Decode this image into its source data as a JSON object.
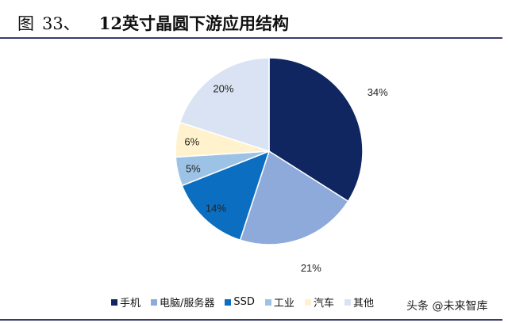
{
  "figure": {
    "label": "图",
    "number": "33、",
    "title": "12英寸晶圆下游应用结构"
  },
  "chart_data": {
    "type": "pie",
    "title": "12英寸晶圆下游应用结构",
    "start": "12 o'clock",
    "direction": "clockwise",
    "legend_position": "bottom",
    "slices": [
      {
        "name": "手机",
        "value": 34,
        "label": "34%",
        "color": "#0f2660"
      },
      {
        "name": "电脑/服务器",
        "value": 21,
        "label": "21%",
        "color": "#8eaadb"
      },
      {
        "name": "SSD",
        "value": 14,
        "label": "14%",
        "color": "#0b6ec0"
      },
      {
        "name": "工业",
        "value": 5,
        "label": "5%",
        "color": "#9cc3e5"
      },
      {
        "name": "汽车",
        "value": 6,
        "label": "6%",
        "color": "#fff2cc"
      },
      {
        "name": "其他",
        "value": 20,
        "label": "20%",
        "color": "#dae3f3"
      }
    ]
  },
  "watermark": "头条 @未来智库"
}
